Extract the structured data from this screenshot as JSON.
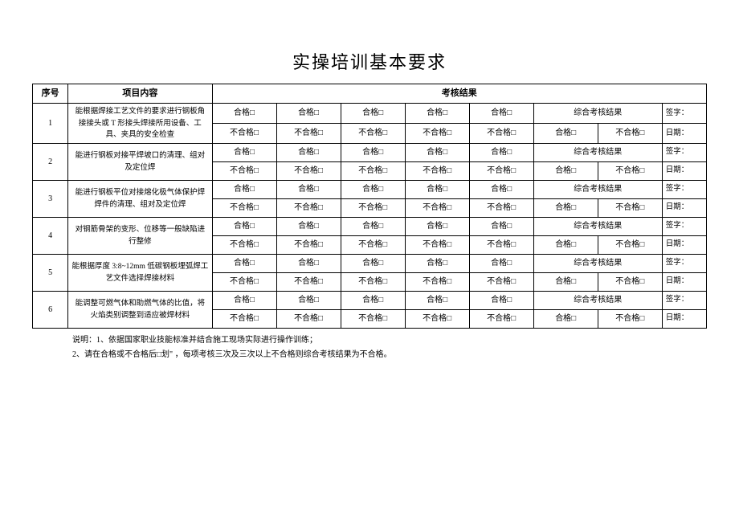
{
  "title": "实操培训基本要求",
  "headers": {
    "seq": "序号",
    "content": "项目内容",
    "result": "考核结果"
  },
  "labels": {
    "pass": "合格□",
    "fail": "不合格□",
    "summary": "综合考核结果",
    "sign": "签字：",
    "date": "日期："
  },
  "rows": [
    {
      "seq": "1",
      "content": "能根据焊接工艺文件的要求进行钢板角接接头或 T 形接头焊接所用设备、工具、夹具的安全检查"
    },
    {
      "seq": "2",
      "content": "能进行钢板对接平焊坡口的清理、组对及定位焊"
    },
    {
      "seq": "3",
      "content": "能进行钢板平位对接熔化极气体保护焊焊件的清理、组对及定位焊"
    },
    {
      "seq": "4",
      "content": "对钢筋骨架的变形、位移等一般缺陷进行整修"
    },
    {
      "seq": "5",
      "content": "能根据厚度 3:8~12mm 低碳钢板埋弧焊工艺文件选择焊接材料"
    },
    {
      "seq": "6",
      "content": "能调整可燃气体和助燃气体的比值，将火焰类别调整到适应被焊材料"
    }
  ],
  "notes": {
    "prefix": "说明：",
    "line1": "1、依据国家职业技能标准并结合施工现场实际进行操作训练；",
    "line2": "2、请在合格或不合格后□划\"    ，每项考核三次及三次以上不合格则综合考核结果为不合格。"
  }
}
